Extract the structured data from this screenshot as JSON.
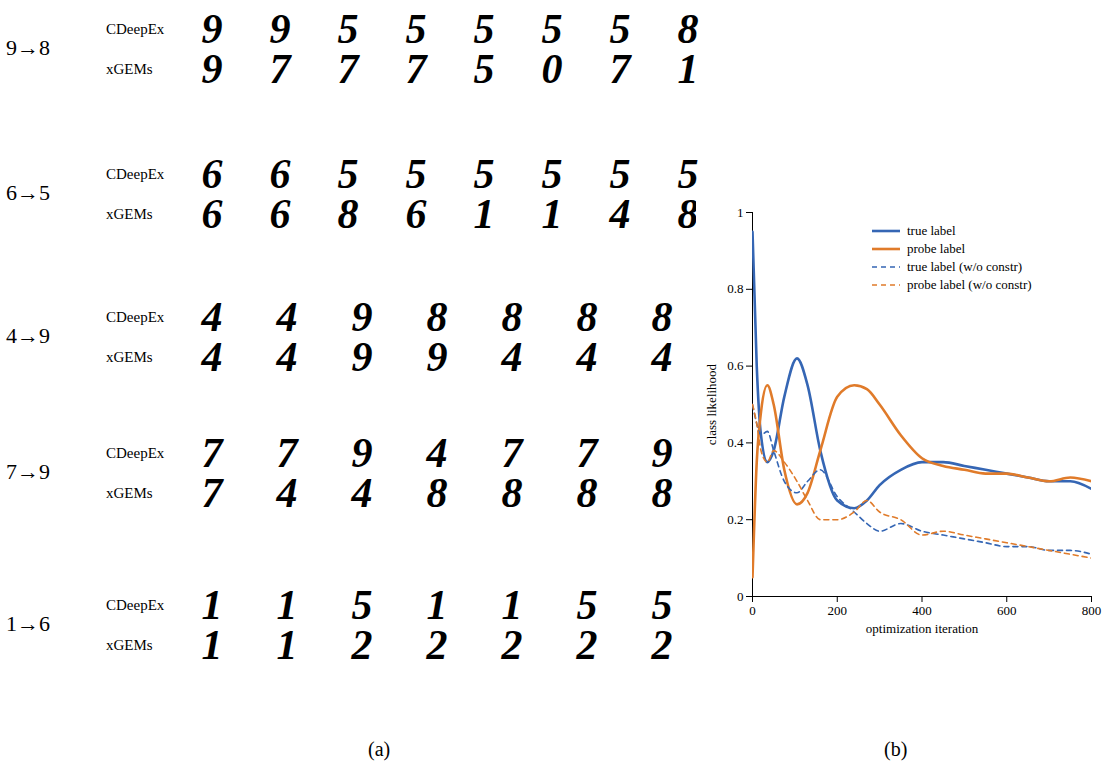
{
  "panel_a": {
    "caption": "(a)",
    "rows": [
      {
        "transition": "9→8",
        "methods": [
          {
            "name": "CDeepEx",
            "images": [
              "9",
              "9",
              "5",
              "5",
              "5",
              "5",
              "5",
              "8"
            ]
          },
          {
            "name": "xGEMs",
            "images": [
              "9",
              "7",
              "7",
              "7",
              "5",
              "0",
              "7",
              "1"
            ]
          }
        ]
      },
      {
        "transition": "6→5",
        "methods": [
          {
            "name": "CDeepEx",
            "images": [
              "6",
              "6",
              "5",
              "5",
              "5",
              "5",
              "5",
              "5"
            ]
          },
          {
            "name": "xGEMs",
            "images": [
              "6",
              "6",
              "8",
              "6",
              "1",
              "1",
              "4",
              "8"
            ]
          }
        ]
      },
      {
        "transition": "4→9",
        "methods": [
          {
            "name": "CDeepEx",
            "images": [
              "4",
              "4",
              "9",
              "8",
              "8",
              "8",
              "8"
            ]
          },
          {
            "name": "xGEMs",
            "images": [
              "4",
              "4",
              "9",
              "9",
              "4",
              "4",
              "4"
            ]
          }
        ]
      },
      {
        "transition": "7→9",
        "methods": [
          {
            "name": "CDeepEx",
            "images": [
              "7",
              "7",
              "9",
              "4",
              "7",
              "7",
              "9"
            ]
          },
          {
            "name": "xGEMs",
            "images": [
              "7",
              "4",
              "4",
              "8",
              "8",
              "8",
              "8"
            ]
          }
        ]
      },
      {
        "transition": "1→6",
        "methods": [
          {
            "name": "CDeepEx",
            "images": [
              "1",
              "1",
              "5",
              "1",
              "1",
              "5",
              "5"
            ]
          },
          {
            "name": "xGEMs",
            "images": [
              "1",
              "1",
              "2",
              "2",
              "2",
              "2",
              "2"
            ]
          }
        ]
      }
    ]
  },
  "chart_data": {
    "type": "line",
    "caption": "(b)",
    "x_label": "optimization iteration",
    "y_label": "class likelihood",
    "x": [
      0,
      10,
      20,
      35,
      50,
      75,
      105,
      130,
      160,
      200,
      240,
      270,
      300,
      350,
      400,
      450,
      500,
      550,
      600,
      650,
      700,
      750,
      800
    ],
    "series": [
      {
        "name": "true label",
        "color": "#3566b4",
        "line_style": "solid",
        "values": [
          0.95,
          0.6,
          0.42,
          0.35,
          0.38,
          0.52,
          0.62,
          0.55,
          0.38,
          0.25,
          0.23,
          0.25,
          0.29,
          0.33,
          0.35,
          0.35,
          0.34,
          0.33,
          0.32,
          0.31,
          0.3,
          0.3,
          0.28
        ]
      },
      {
        "name": "probe label",
        "color": "#e07b2a",
        "line_style": "solid",
        "values": [
          0.05,
          0.35,
          0.48,
          0.55,
          0.5,
          0.33,
          0.24,
          0.27,
          0.38,
          0.52,
          0.55,
          0.54,
          0.5,
          0.42,
          0.36,
          0.34,
          0.33,
          0.32,
          0.32,
          0.31,
          0.3,
          0.31,
          0.3
        ]
      },
      {
        "name": "true label (w/o constr)",
        "color": "#3566b4",
        "line_style": "dashed",
        "values": [
          0.5,
          0.45,
          0.42,
          0.43,
          0.38,
          0.3,
          0.27,
          0.3,
          0.33,
          0.26,
          0.22,
          0.19,
          0.17,
          0.19,
          0.17,
          0.16,
          0.15,
          0.14,
          0.13,
          0.13,
          0.12,
          0.12,
          0.11
        ]
      },
      {
        "name": "probe label (w/o constr)",
        "color": "#e07b2a",
        "line_style": "dashed",
        "values": [
          0.5,
          0.45,
          0.38,
          0.35,
          0.38,
          0.35,
          0.3,
          0.25,
          0.2,
          0.2,
          0.22,
          0.25,
          0.22,
          0.2,
          0.16,
          0.17,
          0.16,
          0.15,
          0.14,
          0.13,
          0.12,
          0.11,
          0.1
        ]
      }
    ],
    "xlim": [
      0,
      800
    ],
    "xticks": [
      0,
      200,
      400,
      600,
      800
    ],
    "ylim": [
      0,
      1
    ],
    "yticks": [
      0,
      0.2,
      0.4,
      0.6,
      0.8,
      1
    ],
    "legend": "top-right",
    "grid": false
  }
}
